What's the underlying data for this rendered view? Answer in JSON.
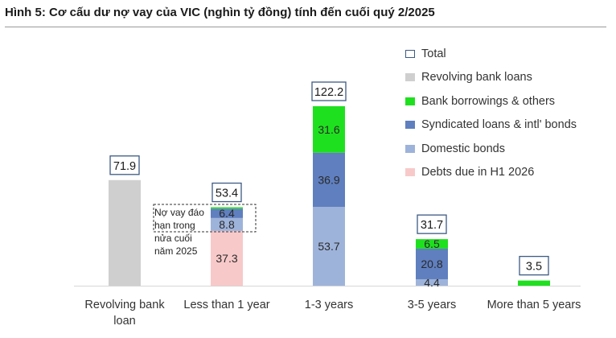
{
  "title": "Hình 5: Cơ cấu dư nợ vay của VIC (nghìn tỷ đồng) tính đến cuối quý 2/2025",
  "annotation": "Nợ vay đáo hạn trong nửa cuối năm 2025",
  "colors": {
    "revolving": "#cfcfcf",
    "bank": "#1fe01f",
    "syndicated": "#5f7fbf",
    "domestic": "#9eb3da",
    "debts_h1_2026": "#f8c9c9",
    "total_border": "#3c5a84"
  },
  "chart_data": {
    "type": "bar",
    "stacked": true,
    "categories": [
      "Revolving bank loan",
      "Less than 1 year",
      "1-3 years",
      "3-5 years",
      "More than 5 years"
    ],
    "series": [
      {
        "name": "Revolving bank loans",
        "key": "revolving",
        "values": [
          71.9,
          0,
          0,
          0,
          0
        ],
        "labels": [
          "",
          "",
          "",
          "",
          ""
        ]
      },
      {
        "name": "Debts due in H1 2026",
        "key": "debts_h1_2026",
        "values": [
          0,
          37.3,
          0,
          0,
          0
        ],
        "labels": [
          "",
          "37.3",
          "",
          "",
          ""
        ]
      },
      {
        "name": "Domestic bonds",
        "key": "domestic",
        "values": [
          0,
          8.8,
          53.7,
          4.4,
          0
        ],
        "labels": [
          "",
          "8.8",
          "53.7",
          "4.4",
          ""
        ]
      },
      {
        "name": "Syndicated loans & intl' bonds",
        "key": "syndicated",
        "values": [
          0,
          6.4,
          36.9,
          20.8,
          0
        ],
        "labels": [
          "",
          "6.4",
          "36.9",
          "20.8",
          ""
        ]
      },
      {
        "name": "Bank borrowings & others",
        "key": "bank",
        "values": [
          0,
          0.9,
          31.6,
          6.5,
          3.5
        ],
        "labels": [
          "",
          "",
          "31.6",
          "6.5",
          ""
        ]
      }
    ],
    "totals": {
      "name": "Total",
      "values": [
        71.9,
        53.4,
        122.2,
        31.7,
        3.5
      ],
      "labels": [
        "71.9",
        "53.4",
        "122.2",
        "31.7",
        "3.5"
      ]
    },
    "legend": [
      {
        "label": "Total",
        "key": "total"
      },
      {
        "label": "Revolving bank loans",
        "key": "revolving"
      },
      {
        "label": "Bank borrowings & others",
        "key": "bank"
      },
      {
        "label": "Syndicated loans & intl' bonds",
        "key": "syndicated"
      },
      {
        "label": "Domestic bonds",
        "key": "domestic"
      },
      {
        "label": "Debts due in H1 2026",
        "key": "debts_h1_2026"
      }
    ],
    "legend_position": "right",
    "ylim": [
      0,
      122.2
    ],
    "grid": false
  }
}
